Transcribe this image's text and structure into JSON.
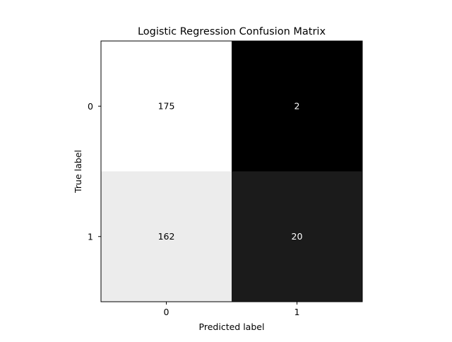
{
  "chart_data": {
    "type": "heatmap",
    "title": "Logistic Regression Confusion Matrix",
    "xlabel": "Predicted label",
    "ylabel": "True label",
    "x_categories": [
      "0",
      "1"
    ],
    "y_categories": [
      "0",
      "1"
    ],
    "values": [
      [
        175,
        2
      ],
      [
        162,
        20
      ]
    ],
    "colormap": "greys-reversed",
    "vmin": 2,
    "vmax": 175,
    "colorbar": false,
    "grid": false
  }
}
